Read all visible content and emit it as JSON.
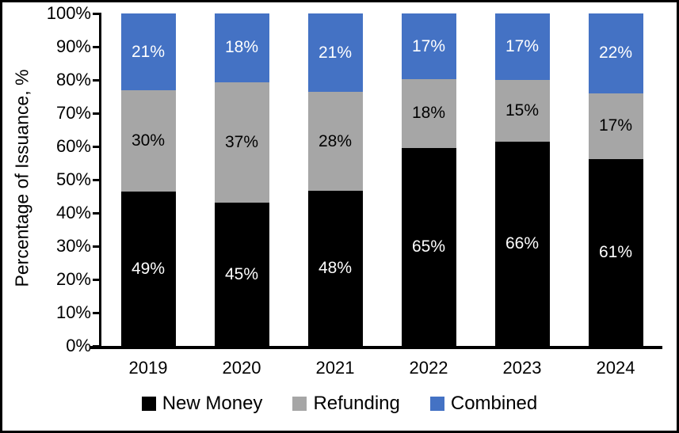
{
  "chart_data": {
    "type": "bar",
    "stacked": true,
    "title": "",
    "xlabel": "",
    "ylabel": "Percentage of Issuance, %",
    "ylim": [
      0,
      100
    ],
    "grid": false,
    "legend_position": "bottom",
    "data_label_suffix": "%",
    "yticks": [
      "0%",
      "10%",
      "20%",
      "30%",
      "40%",
      "50%",
      "60%",
      "70%",
      "80%",
      "90%",
      "100%"
    ],
    "categories": [
      "2019",
      "2020",
      "2021",
      "2022",
      "2023",
      "2024"
    ],
    "series": [
      {
        "name": "New Money",
        "color": "#000000",
        "label_color": "#FFFFFF",
        "values": [
          49,
          45,
          48,
          65,
          66,
          61
        ]
      },
      {
        "name": "Refunding",
        "color": "#A6A6A6",
        "label_color": "#000000",
        "values": [
          30,
          37,
          28,
          18,
          15,
          17
        ]
      },
      {
        "name": "Combined",
        "color": "#4472C4",
        "label_color": "#FFFFFF",
        "values": [
          21,
          18,
          21,
          17,
          17,
          22
        ]
      }
    ]
  }
}
